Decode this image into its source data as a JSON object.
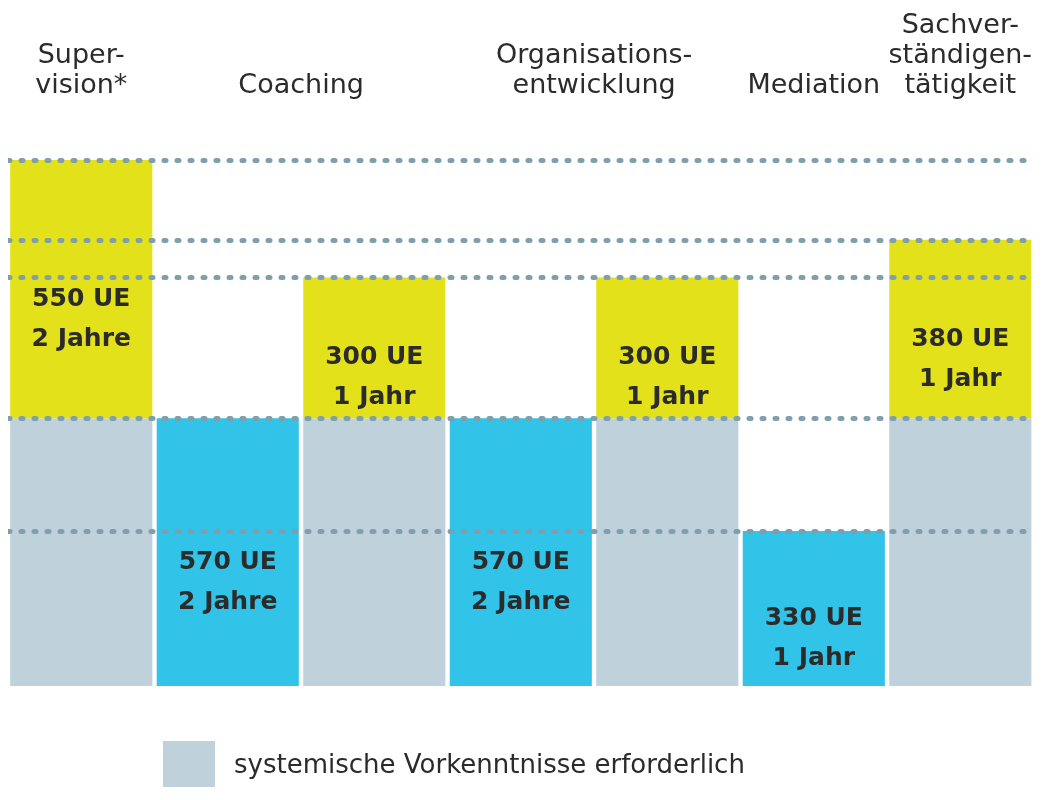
{
  "chart_data": {
    "type": "bar",
    "stacked": true,
    "tick_labels": "x",
    "categories": [
      "Super-\nvision*",
      "Coaching",
      null,
      "Organisations-\nentwicklung",
      null,
      "Mediation",
      "Sachver-\nständigen-\ntätigkeit"
    ],
    "series": [
      {
        "name": "systemische Vorkenntnisse erforderlich",
        "color": "#bfd1da",
        "values": [
          570,
          null,
          570,
          null,
          570,
          null,
          570
        ],
        "value_labels": [
          null,
          null,
          null,
          null,
          null,
          null,
          null
        ]
      },
      {
        "color": "#31c3e8",
        "values": [
          null,
          570,
          null,
          570,
          null,
          330,
          null
        ],
        "value_labels": [
          null,
          "570 UE\n2 Jahre",
          null,
          "570 UE\n2 Jahre",
          null,
          "330 UE\n1 Jahr",
          null
        ]
      },
      {
        "color": "#e3e21a",
        "values": [
          550,
          null,
          300,
          null,
          300,
          null,
          380
        ],
        "value_labels": [
          "550 UE\n2 Jahre",
          null,
          "300 UE\n1 Jahr",
          null,
          "300 UE\n1 Jahr",
          null,
          "380 UE\n1 Jahr"
        ]
      }
    ],
    "ref_lines": [
      {
        "axis": "y",
        "value": 1120,
        "color": "#7f9fad",
        "line_style": "dotted"
      },
      {
        "axis": "y",
        "value": 950,
        "color": "#7f9fad",
        "line_style": "dotted"
      },
      {
        "axis": "y",
        "value": 870,
        "color": "#7f9fad",
        "line_style": "dotted"
      },
      {
        "axis": "y",
        "value": 570,
        "color": "#7f9fad",
        "line_style": "dotted"
      },
      {
        "axis": "y",
        "value": 330,
        "color": "#7f9fad",
        "line_style": "dotted"
      }
    ],
    "legend": "bottom"
  }
}
